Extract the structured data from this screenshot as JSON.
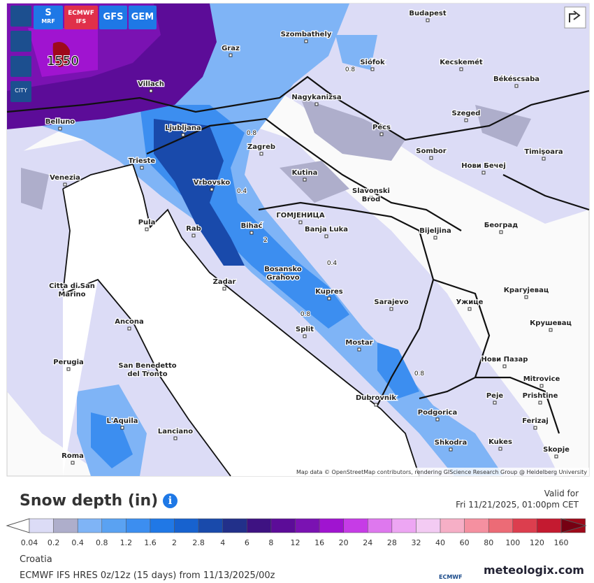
{
  "top_buttons": [
    {
      "text": "S",
      "sub": "MRF"
    },
    {
      "text": "ECMWF",
      "sub": "IFS"
    },
    {
      "text": "GFS"
    },
    {
      "text": "GEM"
    }
  ],
  "side_button": "CITY",
  "places": [
    {
      "lines": [
        "Budapest"
      ]
    },
    {
      "lines": [
        "Szombathely"
      ]
    },
    {
      "lines": [
        "Graz"
      ]
    },
    {
      "lines": [
        "Siófok"
      ]
    },
    {
      "lines": [
        "Kecskemét"
      ]
    },
    {
      "lines": [
        "Villach"
      ]
    },
    {
      "lines": [
        "Nagykanizsa"
      ]
    },
    {
      "lines": [
        "Békéscsaba"
      ]
    },
    {
      "lines": [
        "Szeged"
      ]
    },
    {
      "lines": [
        "Belluno"
      ]
    },
    {
      "lines": [
        "Ljubljana"
      ]
    },
    {
      "lines": [
        "Pécs"
      ]
    },
    {
      "lines": [
        "Zagreb"
      ]
    },
    {
      "lines": [
        "Sombor"
      ]
    },
    {
      "lines": [
        "Timişoara"
      ]
    },
    {
      "lines": [
        "Trieste"
      ]
    },
    {
      "lines": [
        "Venezia"
      ]
    },
    {
      "lines": [
        "Kutina"
      ]
    },
    {
      "lines": [
        "Нови Бечеј"
      ]
    },
    {
      "lines": [
        "Vrbovsko"
      ]
    },
    {
      "lines": [
        "Slavonski",
        "Brod"
      ]
    },
    {
      "lines": [
        "Pula"
      ]
    },
    {
      "lines": [
        "ГОМЈЕНИЦА"
      ]
    },
    {
      "lines": [
        "Banja Luka"
      ]
    },
    {
      "lines": [
        "Bijeljina"
      ]
    },
    {
      "lines": [
        "Београд"
      ]
    },
    {
      "lines": [
        "Rab"
      ]
    },
    {
      "lines": [
        "Bihać"
      ]
    },
    {
      "lines": [
        "Zadar"
      ]
    },
    {
      "lines": [
        "Bosansko",
        "Grahovo"
      ]
    },
    {
      "lines": [
        "Kupres"
      ]
    },
    {
      "lines": [
        "Sarajevo"
      ]
    },
    {
      "lines": [
        "Citta di San",
        "Marino"
      ]
    },
    {
      "lines": [
        "Ancona"
      ]
    },
    {
      "lines": [
        "Ужице"
      ]
    },
    {
      "lines": [
        "Крагујевац"
      ]
    },
    {
      "lines": [
        "Крушевац"
      ]
    },
    {
      "lines": [
        "Split"
      ]
    },
    {
      "lines": [
        "Mostar"
      ]
    },
    {
      "lines": [
        "Perugia"
      ]
    },
    {
      "lines": [
        "San Benedetto",
        "del Tronto"
      ]
    },
    {
      "lines": [
        "Нови Пазар"
      ]
    },
    {
      "lines": [
        "Mitrovice"
      ]
    },
    {
      "lines": [
        "Peje"
      ]
    },
    {
      "lines": [
        "Prishtine"
      ]
    },
    {
      "lines": [
        "Dubrovnik"
      ]
    },
    {
      "lines": [
        "Podgorica"
      ]
    },
    {
      "lines": [
        "L'Aquila"
      ]
    },
    {
      "lines": [
        "Lanciano"
      ]
    },
    {
      "lines": [
        "Ferizaj"
      ]
    },
    {
      "lines": [
        "Shkodra"
      ]
    },
    {
      "lines": [
        "Kukes"
      ]
    },
    {
      "lines": [
        "Skopje"
      ]
    },
    {
      "lines": [
        "Roma"
      ]
    }
  ],
  "contour_labels": [
    "1550",
    "0.8",
    "0.8",
    "0.4",
    "2",
    "0.4",
    "0.8",
    "0.8"
  ],
  "attribution": "Map data © OpenStreetMap contributors, rendering GIScience Research Group @ Heidelberg University",
  "title": "Snow depth (in)",
  "valid_label": "Valid for",
  "valid_time": "Fri 11/21/2025, 01:00pm CET",
  "legend": [
    {
      "label": "0.04",
      "color": "#dcdcf6"
    },
    {
      "label": "0.2",
      "color": "#aeaecb"
    },
    {
      "label": "0.4",
      "color": "#7fb4f6"
    },
    {
      "label": "0.8",
      "color": "#5aa2f2"
    },
    {
      "label": "1.2",
      "color": "#3c8ef0"
    },
    {
      "label": "1.6",
      "color": "#2078e6"
    },
    {
      "label": "2",
      "color": "#1762cf"
    },
    {
      "label": "2.8",
      "color": "#194aab"
    },
    {
      "label": "4",
      "color": "#22308a"
    },
    {
      "label": "6",
      "color": "#3e1282"
    },
    {
      "label": "8",
      "color": "#5c0c98"
    },
    {
      "label": "12",
      "color": "#7a12b2"
    },
    {
      "label": "16",
      "color": "#a014d0"
    },
    {
      "label": "20",
      "color": "#c63ce6"
    },
    {
      "label": "24",
      "color": "#de78ee"
    },
    {
      "label": "28",
      "color": "#eda6f3"
    },
    {
      "label": "32",
      "color": "#f3cbf3"
    },
    {
      "label": "40",
      "color": "#f6afc6"
    },
    {
      "label": "60",
      "color": "#f590a0"
    },
    {
      "label": "80",
      "color": "#ec6b76"
    },
    {
      "label": "100",
      "color": "#dc3e4e"
    },
    {
      "label": "120",
      "color": "#c41a30"
    },
    {
      "label": "160",
      "color": "#9e0a1a"
    },
    {
      "color": "#760012"
    }
  ],
  "region": "Croatia",
  "model_run": "ECMWF IFS HRES 0z/12z (15 days) from 11/13/2025/00z",
  "logo_ecmwf": "ECMWF",
  "logo_site": "meteologix.com"
}
